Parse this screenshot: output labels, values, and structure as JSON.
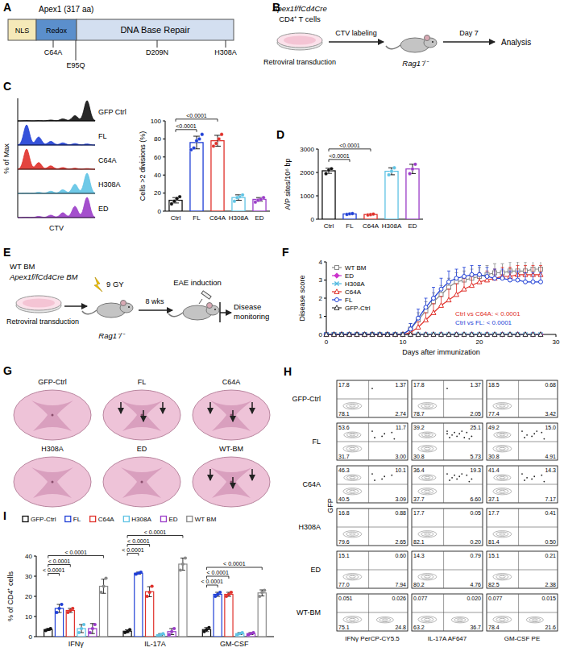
{
  "diagrams": {
    "A": {
      "letter": "A",
      "title": "Apex1 (317 aa)",
      "domains": [
        {
          "label": "NLS",
          "color": "#f5e9b8"
        },
        {
          "label": "Redox",
          "color": "#5b8fcc"
        },
        {
          "label": "DNA Base Repair",
          "color": "#d3dff0"
        }
      ],
      "mutations": [
        "C64A",
        "E95Q",
        "D209N",
        "H308A"
      ]
    },
    "B": {
      "letter": "B",
      "genotype": "Apex1f/fCd4Cre",
      "cells": "CD4⁺ T cells",
      "step": "Retroviral transduction",
      "labeling": "CTV labeling",
      "recipient": "Rag1⁻/⁻",
      "time": "Day 7",
      "readout": "Analysis"
    },
    "C_histograms": {
      "letter": "C",
      "x_label": "CTV",
      "y_label": "% of Max",
      "samples": [
        {
          "name": "GFP Ctrl",
          "color": "#111111",
          "division_percent": [
            70,
            18,
            7,
            3,
            1,
            1
          ]
        },
        {
          "name": "FL",
          "color": "#1f3fd6",
          "division_percent": [
            3,
            4,
            6,
            10,
            22,
            55
          ]
        },
        {
          "name": "C64A",
          "color": "#e0302a",
          "division_percent": [
            2,
            3,
            5,
            10,
            20,
            60
          ]
        },
        {
          "name": "H308A",
          "color": "#5fc3e4",
          "division_percent": [
            55,
            25,
            10,
            6,
            3,
            1
          ]
        },
        {
          "name": "ED",
          "color": "#9a3cc8",
          "division_percent": [
            50,
            28,
            12,
            6,
            3,
            1
          ]
        }
      ]
    },
    "E": {
      "letter": "E",
      "wt": "WT BM",
      "ko": "Apex1f/fCd4Cre BM",
      "step": "Retroviral transduction",
      "dose": "9 GY",
      "recipient": "Rag1⁻/⁻",
      "time": "8 wks",
      "induction": "EAE induction",
      "readout": "Disease monitoring"
    },
    "G": {
      "letter": "G",
      "sections": [
        "GFP-Ctrl",
        "FL",
        "C64A",
        "H308A",
        "ED",
        "WT-BM"
      ],
      "arrows": [
        0,
        3,
        3,
        0,
        0,
        3
      ]
    },
    "H": {
      "letter": "H",
      "y_label": "GFP",
      "x_labels": [
        "IFNγ PerCP-CY5.5",
        "IL-17A AF647",
        "GM-CSF PE"
      ],
      "rows": [
        {
          "name": "GFP-Ctrl",
          "plots": [
            [
              "17.8",
              "1.37",
              "78.1",
              "2.74"
            ],
            [
              "17.8",
              "1.37",
              "78.7",
              "2.05"
            ],
            [
              "18.5",
              "0.68",
              "77.4",
              "3.42"
            ]
          ]
        },
        {
          "name": "FL",
          "plots": [
            [
              "53.6",
              "11.7",
              "31.7",
              "3.00"
            ],
            [
              "39.2",
              "25.1",
              "30.8",
              "5.73"
            ],
            [
              "49.2",
              "15.0",
              "30.8",
              "4.91"
            ]
          ]
        },
        {
          "name": "C64A",
          "plots": [
            [
              "46.3",
              "10.1",
              "40.5",
              "3.09"
            ],
            [
              "36.4",
              "19.3",
              "37.7",
              "6.60"
            ],
            [
              "41.4",
              "14.3",
              "37.1",
              "7.17"
            ]
          ]
        },
        {
          "name": "H308A",
          "plots": [
            [
              "16.8",
              "0.88",
              "79.6",
              "2.65"
            ],
            [
              "17.7",
              "0.05",
              "82.1",
              "0.20"
            ],
            [
              "17.7",
              "0.41",
              "81.4",
              "0.50"
            ]
          ]
        },
        {
          "name": "ED",
          "plots": [
            [
              "15.1",
              "0.60",
              "77.0",
              "7.94"
            ],
            [
              "14.3",
              "0.79",
              "80.2",
              "4.76"
            ],
            [
              "15.1",
              "0.21",
              "82.5",
              "2.38"
            ]
          ]
        },
        {
          "name": "WT-BM",
          "plots": [
            [
              "0.051",
              "0.026",
              "75.1",
              "24.8"
            ],
            [
              "0.077",
              "0.020",
              "63.2",
              "36.7"
            ],
            [
              "0.077",
              "0.015",
              "78.4",
              "21.6"
            ]
          ]
        }
      ]
    }
  },
  "chart_data": [
    {
      "type": "bar",
      "y_label": "Cells >2 divisions (%)",
      "categories": [
        "Ctrl",
        "FL",
        "C64A",
        "H308A",
        "ED"
      ],
      "values": [
        12,
        76,
        78,
        15,
        13
      ],
      "errors": [
        3,
        7,
        6,
        3,
        2
      ],
      "points": [
        [
          8,
          11,
          14,
          16
        ],
        [
          68,
          70,
          78,
          80,
          85
        ],
        [
          72,
          75,
          80,
          85
        ],
        [
          11,
          15,
          16,
          18
        ],
        [
          10,
          12,
          13,
          15
        ]
      ],
      "colors": [
        "#111111",
        "#1f3fd6",
        "#e0302a",
        "#5fc3e4",
        "#9a3cc8"
      ],
      "ylim": [
        0,
        100
      ],
      "yticks": [
        0,
        20,
        40,
        60,
        80,
        100
      ],
      "comparisons": [
        {
          "from": 0,
          "to": 1,
          "label": "<0.0001"
        },
        {
          "from": 0,
          "to": 2,
          "label": "<0.0001"
        }
      ]
    },
    {
      "type": "bar",
      "letter": "D",
      "y_label": "A/P sites/10⁶ bp",
      "categories": [
        "Ctrl",
        "FL",
        "C64A",
        "H308A",
        "ED"
      ],
      "values": [
        2070,
        225,
        200,
        2050,
        2150
      ],
      "errors": [
        110,
        20,
        18,
        150,
        200
      ],
      "points": [
        [
          1950,
          2100,
          2160
        ],
        [
          205,
          230,
          240
        ],
        [
          180,
          200,
          220
        ],
        [
          1900,
          2050,
          2200
        ],
        [
          1950,
          2150,
          2350
        ]
      ],
      "colors": [
        "#111111",
        "#1f3fd6",
        "#e0302a",
        "#5fc3e4",
        "#9a3cc8"
      ],
      "ylim": [
        0,
        3000
      ],
      "yticks": [
        0,
        1000,
        2000,
        3000
      ],
      "comparisons": [
        {
          "from": 0,
          "to": 1,
          "label": "<0.0001"
        },
        {
          "from": 0,
          "to": 2,
          "label": "<0.0001"
        }
      ]
    },
    {
      "type": "line",
      "letter": "F",
      "x_label": "Days after immunization",
      "y_label": "Disease score",
      "x": [
        0,
        1,
        2,
        3,
        4,
        5,
        6,
        7,
        8,
        9,
        10,
        11,
        12,
        13,
        14,
        15,
        16,
        17,
        18,
        19,
        20,
        21,
        22,
        23,
        24,
        25,
        26,
        27,
        28
      ],
      "series": [
        {
          "name": "WT BM",
          "color": "#8a8a8a",
          "marker": "square",
          "values": [
            0,
            0,
            0,
            0,
            0,
            0,
            0,
            0,
            0,
            0,
            0,
            0.3,
            0.8,
            1.3,
            1.8,
            2.2,
            2.6,
            2.9,
            3.0,
            3.1,
            3.2,
            3.3,
            3.4,
            3.4,
            3.5,
            3.5,
            3.5,
            3.6,
            3.6
          ],
          "errors": [
            0,
            0,
            0,
            0,
            0,
            0,
            0,
            0,
            0,
            0,
            0,
            0.3,
            0.4,
            0.5,
            0.5,
            0.5,
            0.5,
            0.5,
            0.5,
            0.5,
            0.5,
            0.5,
            0.5,
            0.5,
            0.5,
            0.5,
            0.5,
            0.5,
            0.5
          ]
        },
        {
          "name": "ED",
          "color": "#cc33cc",
          "marker": "diamond",
          "values": [
            0,
            0,
            0,
            0,
            0,
            0,
            0,
            0,
            0,
            0,
            0,
            0,
            0,
            0,
            0,
            0,
            0,
            0,
            0,
            0,
            0,
            0,
            0,
            0,
            0,
            0,
            0,
            0,
            0
          ]
        },
        {
          "name": "H308A",
          "color": "#4fb8e0",
          "marker": "cross",
          "values": [
            0,
            0,
            0,
            0,
            0,
            0,
            0,
            0,
            0,
            0,
            0,
            0,
            0,
            0,
            0,
            0,
            0,
            0,
            0,
            0,
            0,
            0,
            0,
            0,
            0,
            0,
            0,
            0,
            0
          ]
        },
        {
          "name": "C64A",
          "color": "#e0302a",
          "marker": "triangle",
          "values": [
            0,
            0,
            0,
            0,
            0,
            0,
            0,
            0,
            0,
            0,
            0,
            0.1,
            0.4,
            0.8,
            1.2,
            1.6,
            1.9,
            2.2,
            2.5,
            2.7,
            2.9,
            3.0,
            3.1,
            3.2,
            3.2,
            3.3,
            3.3,
            3.3,
            3.3
          ],
          "errors": [
            0,
            0,
            0,
            0,
            0,
            0,
            0,
            0,
            0,
            0,
            0,
            0.1,
            0.3,
            0.4,
            0.5,
            0.5,
            0.6,
            0.6,
            0.6,
            0.5,
            0.5,
            0.5,
            0.5,
            0.5,
            0.5,
            0.5,
            0.5,
            0.5,
            0.5
          ]
        },
        {
          "name": "FL",
          "color": "#1f3fd6",
          "marker": "circle",
          "values": [
            0,
            0,
            0,
            0,
            0,
            0,
            0,
            0,
            0,
            0,
            0,
            0.3,
            0.9,
            1.5,
            2.0,
            2.5,
            2.9,
            3.1,
            3.2,
            3.3,
            3.3,
            3.2,
            3.1,
            3.1,
            3.0,
            3.0,
            2.9,
            2.9,
            2.9
          ],
          "errors": [
            0,
            0,
            0,
            0,
            0,
            0,
            0,
            0,
            0,
            0,
            0,
            0.3,
            0.5,
            0.5,
            0.6,
            0.6,
            0.6,
            0.5,
            0.5,
            0.5,
            0.5,
            0.5,
            0.5,
            0.5,
            0.5,
            0.5,
            0.5,
            0.5,
            0.5
          ]
        },
        {
          "name": "GFP-Ctrl",
          "color": "#333333",
          "marker": "triangle",
          "values": [
            0,
            0,
            0,
            0,
            0,
            0,
            0,
            0,
            0,
            0,
            0,
            0,
            0,
            0,
            0,
            0,
            0,
            0,
            0,
            0,
            0,
            0,
            0,
            0,
            0,
            0,
            0,
            0,
            0
          ]
        }
      ],
      "xlim": [
        0,
        30
      ],
      "xticks": [
        0,
        10,
        20,
        30
      ],
      "ylim": [
        0,
        4
      ],
      "yticks": [
        0,
        1,
        2,
        3,
        4
      ],
      "legend": "top-left",
      "annotations": [
        {
          "text": "Ctrl vs C64A: < 0.0001",
          "color": "#e0302a"
        },
        {
          "text": "Ctrl vs FL: < 0.0001",
          "color": "#1f3fd6"
        }
      ]
    },
    {
      "type": "bar",
      "letter": "I",
      "y_label": "% of CD4⁺ cells",
      "categories": [
        "IFNγ",
        "IL-17A",
        "GM-CSF"
      ],
      "series": [
        {
          "name": "GFP-Ctrl",
          "color": "#111111",
          "values": [
            3.5,
            2.7,
            3.5
          ],
          "errors": [
            0.5,
            0.7,
            1
          ],
          "points": [
            [
              3,
              3.5,
              4
            ],
            [
              2,
              2.5,
              3.5
            ],
            [
              2.5,
              3.5,
              4.5
            ]
          ]
        },
        {
          "name": "FL",
          "color": "#1f3fd6",
          "values": [
            14,
            31.5,
            21
          ],
          "errors": [
            2,
            0.5,
            1
          ],
          "points": [
            [
              12,
              14,
              16
            ],
            [
              31,
              31.5,
              32
            ],
            [
              20,
              21,
              22
            ]
          ]
        },
        {
          "name": "C64A",
          "color": "#e0302a",
          "values": [
            13,
            22.3,
            21
          ],
          "errors": [
            1,
            2.5,
            1
          ],
          "points": [
            [
              12,
              13,
              14
            ],
            [
              20,
              22,
              25
            ],
            [
              20,
              21,
              22
            ]
          ]
        },
        {
          "name": "H308A",
          "color": "#5fc3e4",
          "values": [
            4,
            1,
            1.5
          ],
          "errors": [
            2,
            0.5,
            0.5
          ],
          "points": [
            [
              2,
              4,
              6
            ],
            [
              0.5,
              1,
              1.5
            ],
            [
              1,
              1.5,
              2
            ]
          ]
        },
        {
          "name": "ED",
          "color": "#9a3cc8",
          "values": [
            4,
            2.5,
            1.5
          ],
          "errors": [
            2.5,
            1.5,
            0.5
          ],
          "points": [
            [
              2,
              4,
              6
            ],
            [
              1,
              2.5,
              4
            ],
            [
              1,
              1.5,
              2
            ]
          ]
        },
        {
          "name": "WT BM",
          "color": "#8a8a8a",
          "values": [
            25,
            36,
            21.7
          ],
          "errors": [
            3.5,
            3,
            1.5
          ],
          "points": [
            [
              22,
              25,
              29
            ],
            [
              33,
              36,
              39
            ],
            [
              20,
              22,
              23
            ]
          ]
        }
      ],
      "ylim": [
        0,
        40
      ],
      "yticks": [
        0,
        10,
        20,
        30,
        40
      ],
      "legend": "top",
      "comparisons": [
        {
          "category": 0,
          "from": 0,
          "to": 1,
          "label": "< 0.0001"
        },
        {
          "category": 0,
          "from": 0,
          "to": 2,
          "label": "< 0.0001"
        },
        {
          "category": 0,
          "from": 0,
          "to": 5,
          "label": "< 0.0001"
        },
        {
          "category": 1,
          "from": 0,
          "to": 1,
          "label": "< 0.0001"
        },
        {
          "category": 1,
          "from": 0,
          "to": 2,
          "label": "< 0.0001"
        },
        {
          "category": 1,
          "from": 0,
          "to": 5,
          "label": "< 0.0001"
        },
        {
          "category": 2,
          "from": 0,
          "to": 1,
          "label": "< 0.0001"
        },
        {
          "category": 2,
          "from": 0,
          "to": 2,
          "label": "< 0.0001"
        },
        {
          "category": 2,
          "from": 0,
          "to": 5,
          "label": "< 0.0001"
        }
      ]
    }
  ]
}
